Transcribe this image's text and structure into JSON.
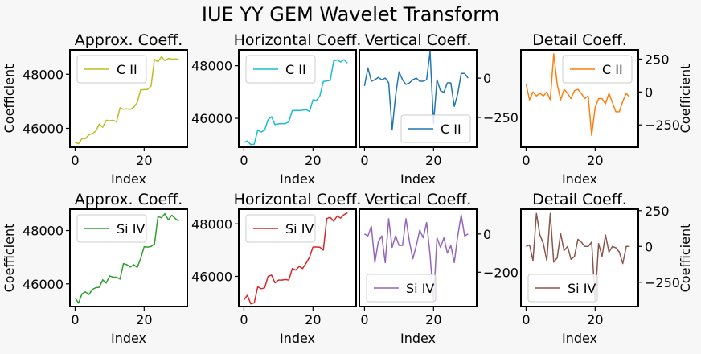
{
  "figure": {
    "title": "IUE YY GEM Wavelet Transform"
  },
  "colors": {
    "background": "#f7f7f7"
  },
  "chart_data": [
    {
      "type": "line",
      "row": 0,
      "col": 0,
      "title": "Approx. Coeff.",
      "xlabel": "Index",
      "ylabel": "Coefficient",
      "xlim": [
        -1.5,
        32.5
      ],
      "ylim": [
        45300,
        48900
      ],
      "xticks": [
        0,
        20
      ],
      "xtick_labels": [
        "0",
        "20"
      ],
      "yticks": [
        46000,
        48000
      ],
      "ytick_labels": [
        "46000",
        "48000"
      ],
      "yaxis_side": "left",
      "legend_position": "upper left",
      "series": [
        {
          "name": "C II",
          "color": "#bcbd22",
          "x": [
            0,
            1,
            2,
            3,
            4,
            5,
            6,
            7,
            8,
            9,
            10,
            11,
            12,
            13,
            14,
            15,
            16,
            17,
            18,
            19,
            20,
            21,
            22,
            23,
            24,
            25,
            26,
            27,
            28,
            29,
            30
          ],
          "values": [
            45480,
            45430,
            45620,
            45620,
            45760,
            45800,
            45900,
            46150,
            46040,
            46300,
            46280,
            46300,
            46240,
            46760,
            46700,
            46720,
            46700,
            46780,
            46960,
            47420,
            47430,
            47440,
            47560,
            48550,
            48460,
            48650,
            48500,
            48580,
            48560,
            48560,
            48560
          ]
        }
      ]
    },
    {
      "type": "line",
      "row": 0,
      "col": 1,
      "title": "Horizontal Coeff.",
      "xlabel": "Index",
      "ylabel": "",
      "xlim": [
        -1.5,
        32.5
      ],
      "ylim": [
        44900,
        48600
      ],
      "xticks": [
        0,
        20
      ],
      "xtick_labels": [
        "0",
        "20"
      ],
      "yticks": [
        46000,
        48000
      ],
      "ytick_labels": [
        "46000",
        "48000"
      ],
      "yaxis_side": "left",
      "legend_position": "upper left",
      "series": [
        {
          "name": "C II",
          "color": "#17becf",
          "x": [
            0,
            1,
            2,
            3,
            4,
            5,
            6,
            7,
            8,
            9,
            10,
            11,
            12,
            13,
            14,
            15,
            16,
            17,
            18,
            19,
            20,
            21,
            22,
            23,
            24,
            25,
            26,
            27,
            28,
            29,
            30
          ],
          "values": [
            45080,
            45140,
            45000,
            45020,
            45550,
            45480,
            45550,
            45950,
            46060,
            45760,
            45790,
            45800,
            45800,
            45870,
            46290,
            46300,
            46300,
            46310,
            46330,
            46260,
            46700,
            46680,
            46850,
            47400,
            47420,
            47440,
            48180,
            48220,
            48140,
            48230,
            48100
          ]
        }
      ]
    },
    {
      "type": "line",
      "row": 0,
      "col": 2,
      "title": "Vertical Coeff.",
      "xlabel": "Index",
      "ylabel": "",
      "xlim": [
        -1.5,
        32.5
      ],
      "ylim": [
        -440,
        180
      ],
      "xticks": [
        0,
        20
      ],
      "xtick_labels": [
        "0",
        "20"
      ],
      "yticks": [
        -250,
        0
      ],
      "ytick_labels": [
        "−250",
        "0"
      ],
      "yaxis_side": "right",
      "legend_position": "lower right",
      "series": [
        {
          "name": "C II",
          "color": "#1f77b4",
          "x": [
            0,
            1,
            2,
            3,
            4,
            5,
            6,
            7,
            8,
            9,
            10,
            11,
            12,
            13,
            14,
            15,
            16,
            17,
            18,
            19,
            20,
            21,
            22,
            23,
            24,
            25,
            26,
            27,
            28,
            29,
            30
          ],
          "values": [
            -50,
            65,
            -20,
            -10,
            5,
            -10,
            0,
            -30,
            -330,
            -110,
            40,
            -10,
            -40,
            -30,
            -10,
            0,
            -20,
            -20,
            -10,
            170,
            -290,
            -10,
            -80,
            -90,
            -30,
            -30,
            -180,
            -100,
            30,
            30,
            0
          ]
        }
      ]
    },
    {
      "type": "line",
      "row": 0,
      "col": 3,
      "title": "Detail Coeff.",
      "xlabel": "Index",
      "ylabel": "Coefficient",
      "xlim": [
        -1.5,
        32.5
      ],
      "ylim": [
        -420,
        320
      ],
      "xticks": [
        0,
        20
      ],
      "xtick_labels": [
        "0",
        "20"
      ],
      "yticks": [
        -250,
        0,
        250
      ],
      "ytick_labels": [
        "−250",
        "0",
        "250"
      ],
      "yaxis_side": "right",
      "legend_position": "upper right",
      "series": [
        {
          "name": "C II",
          "color": "#ff7f0e",
          "x": [
            0,
            1,
            2,
            3,
            4,
            5,
            6,
            7,
            8,
            9,
            10,
            11,
            12,
            13,
            14,
            15,
            16,
            17,
            18,
            19,
            20,
            21,
            22,
            23,
            24,
            25,
            26,
            27,
            28,
            29,
            30
          ],
          "values": [
            60,
            -60,
            0,
            -30,
            -10,
            -30,
            0,
            -60,
            290,
            60,
            -60,
            20,
            -10,
            -50,
            10,
            20,
            -10,
            -50,
            -30,
            -330,
            -120,
            -50,
            -50,
            -90,
            -10,
            -80,
            -150,
            -150,
            -70,
            -10,
            -40
          ]
        }
      ]
    },
    {
      "type": "line",
      "row": 1,
      "col": 0,
      "title": "Approx. Coeff.",
      "xlabel": "Index",
      "ylabel": "Coefficient",
      "xlim": [
        -1.5,
        32.5
      ],
      "ylim": [
        45150,
        48800
      ],
      "xticks": [
        0,
        20
      ],
      "xtick_labels": [
        "0",
        "20"
      ],
      "yticks": [
        46000,
        48000
      ],
      "ytick_labels": [
        "46000",
        "48000"
      ],
      "yaxis_side": "left",
      "legend_position": "upper left",
      "series": [
        {
          "name": "Si IV",
          "color": "#2ca02c",
          "x": [
            0,
            1,
            2,
            3,
            4,
            5,
            6,
            7,
            8,
            9,
            10,
            11,
            12,
            13,
            14,
            15,
            16,
            17,
            18,
            19,
            20,
            21,
            22,
            23,
            24,
            25,
            26,
            27,
            28,
            29,
            30
          ],
          "values": [
            45480,
            45280,
            45630,
            45700,
            45600,
            45790,
            45860,
            45870,
            46150,
            46030,
            46300,
            46250,
            46250,
            46180,
            46760,
            46720,
            46630,
            46720,
            46620,
            46950,
            47390,
            47380,
            47400,
            47500,
            48520,
            48480,
            48630,
            48400,
            48570,
            48450,
            48350
          ]
        }
      ]
    },
    {
      "type": "line",
      "row": 1,
      "col": 1,
      "title": "Horizontal Coeff.",
      "xlabel": "Index",
      "ylabel": "",
      "xlim": [
        -1.5,
        32.5
      ],
      "ylim": [
        44850,
        48560
      ],
      "xticks": [
        0,
        20
      ],
      "xtick_labels": [
        "0",
        "20"
      ],
      "yticks": [
        46000,
        48000
      ],
      "ytick_labels": [
        "46000",
        "48000"
      ],
      "yaxis_side": "left",
      "legend_position": "upper left",
      "series": [
        {
          "name": "Si IV",
          "color": "#d62728",
          "x": [
            0,
            1,
            2,
            3,
            4,
            5,
            6,
            7,
            8,
            9,
            10,
            11,
            12,
            13,
            14,
            15,
            16,
            17,
            18,
            19,
            20,
            21,
            22,
            23,
            24,
            25,
            26,
            27,
            28,
            29,
            30
          ],
          "values": [
            45100,
            45280,
            44950,
            44990,
            45600,
            45530,
            45560,
            46000,
            46050,
            45750,
            45860,
            45860,
            45880,
            45860,
            46300,
            46240,
            46380,
            46300,
            46500,
            46730,
            47120,
            47120,
            47110,
            47000,
            48200,
            48250,
            48100,
            48300,
            48220,
            48350,
            48420
          ]
        }
      ]
    },
    {
      "type": "line",
      "row": 1,
      "col": 2,
      "title": "Vertical Coeff.",
      "xlabel": "Index",
      "ylabel": "",
      "xlim": [
        -1.5,
        32.5
      ],
      "ylim": [
        -380,
        130
      ],
      "xticks": [
        0,
        20
      ],
      "xtick_labels": [
        "0",
        "20"
      ],
      "yticks": [
        -200,
        0
      ],
      "ytick_labels": [
        "−200",
        "0"
      ],
      "yaxis_side": "right",
      "legend_position": "lower left",
      "series": [
        {
          "name": "Si IV",
          "color": "#9467bd",
          "x": [
            0,
            1,
            2,
            3,
            4,
            5,
            6,
            7,
            8,
            9,
            10,
            11,
            12,
            13,
            14,
            15,
            16,
            17,
            18,
            19,
            20,
            21,
            22,
            23,
            24,
            25,
            26,
            27,
            28,
            29,
            30
          ],
          "values": [
            0,
            -10,
            40,
            -150,
            -40,
            -10,
            -150,
            80,
            -70,
            -10,
            -60,
            -60,
            80,
            -40,
            -130,
            -60,
            20,
            -20,
            60,
            -110,
            -350,
            -20,
            -70,
            -20,
            -100,
            -60,
            -150,
            -10,
            100,
            -10,
            0
          ]
        }
      ]
    },
    {
      "type": "line",
      "row": 1,
      "col": 3,
      "title": "Detail Coeff.",
      "xlabel": "Index",
      "ylabel": "Coefficient",
      "xlim": [
        -1.5,
        32.5
      ],
      "ylim": [
        -420,
        260
      ],
      "xticks": [
        0,
        20
      ],
      "xtick_labels": [
        "0",
        "20"
      ],
      "yticks": [
        -250,
        0,
        250
      ],
      "ytick_labels": [
        "−250",
        "0",
        "250"
      ],
      "yaxis_side": "right",
      "legend_position": "lower left",
      "series": [
        {
          "name": "Si IV",
          "color": "#8c564b",
          "x": [
            0,
            1,
            2,
            3,
            4,
            5,
            6,
            7,
            8,
            9,
            10,
            11,
            12,
            13,
            14,
            15,
            16,
            17,
            18,
            19,
            20,
            21,
            22,
            23,
            24,
            25,
            26,
            27,
            28,
            29,
            30
          ],
          "values": [
            0,
            10,
            -100,
            230,
            80,
            20,
            -100,
            230,
            -110,
            -80,
            90,
            -30,
            0,
            -90,
            -70,
            50,
            30,
            0,
            0,
            30,
            -380,
            20,
            -70,
            80,
            -40,
            0,
            -10,
            -40,
            -120,
            0,
            0
          ]
        }
      ]
    }
  ]
}
